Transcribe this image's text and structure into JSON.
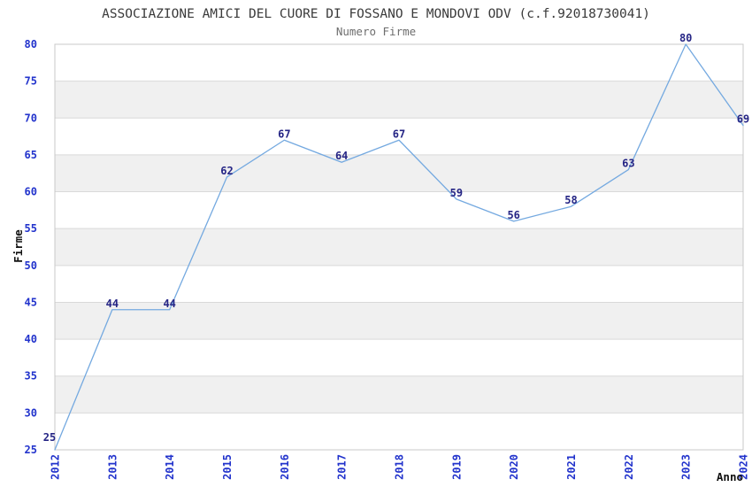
{
  "chart_data": {
    "type": "line",
    "title": "ASSOCIAZIONE AMICI DEL CUORE DI FOSSANO E MONDOVI ODV (c.f.92018730041)",
    "subtitle": "Numero Firme",
    "xlabel": "Anno",
    "ylabel": "Firme",
    "x": [
      "2012",
      "2013",
      "2014",
      "2015",
      "2016",
      "2017",
      "2018",
      "2019",
      "2020",
      "2021",
      "2022",
      "2023",
      "2024"
    ],
    "series": [
      {
        "name": "Numero Firme",
        "values": [
          25,
          44,
          44,
          62,
          67,
          64,
          67,
          59,
          56,
          58,
          63,
          80,
          69
        ]
      }
    ],
    "ylim": [
      25,
      80
    ],
    "ytick_step": 5,
    "grid": true,
    "legend": false,
    "band_pattern": "alternating-horizontal",
    "colors": {
      "line": "#74a9e0",
      "data_label": "#252585",
      "tick_label": "#2233cc",
      "band": "#f0f0f0",
      "band_alt": "#ffffff",
      "gridline": "#d9d9d9",
      "border": "#c8c8c8",
      "title": "#3a3a3a",
      "subtitle": "#6e6e6e",
      "axis_title": "#111111",
      "background": "#ffffff"
    }
  }
}
